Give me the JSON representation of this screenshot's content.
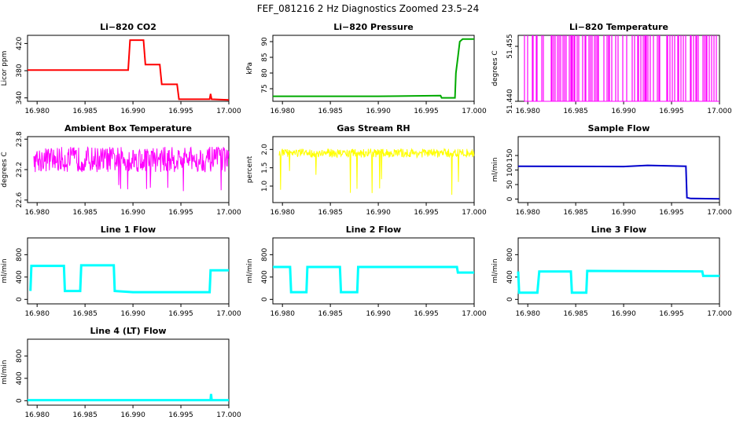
{
  "figure_title": "FEF_081216  2 Hz Diagnostics Zoomed 23.5–24",
  "x_ticks": [
    "16.980",
    "16.985",
    "16.990",
    "16.995",
    "17.000"
  ],
  "chart_data": [
    {
      "type": "line",
      "title": "Li−820 CO2",
      "ylabel": "Licor ppm",
      "color": "#ff0000",
      "xlim": [
        16.979,
        17.0
      ],
      "ylim": [
        335,
        432
      ],
      "yticks": [
        340,
        380,
        420
      ],
      "ytick_labels": [
        "340",
        "380",
        "420"
      ],
      "x": [
        16.979,
        16.9895,
        16.9897,
        16.9911,
        16.9913,
        16.9928,
        16.993,
        16.9946,
        16.9948,
        16.998,
        16.9981,
        16.9982,
        17.0
      ],
      "y": [
        381,
        381,
        425,
        425,
        389,
        389,
        360,
        360,
        338,
        338,
        346,
        338,
        337
      ]
    },
    {
      "type": "line",
      "title": "Li−820 Pressure",
      "ylabel": "kPa",
      "color": "#00aa00",
      "xlim": [
        16.979,
        17.0
      ],
      "ylim": [
        71,
        92
      ],
      "yticks": [
        75,
        80,
        85,
        90
      ],
      "ytick_labels": [
        "75",
        "80",
        "85",
        "90"
      ],
      "x": [
        16.979,
        16.99,
        16.9965,
        16.9966,
        16.998,
        16.9981,
        16.9983,
        16.9985,
        16.9988,
        17.0
      ],
      "y": [
        72.6,
        72.6,
        72.8,
        72.1,
        72.1,
        80,
        85,
        90,
        90.8,
        90.8
      ]
    },
    {
      "type": "line",
      "title": "Li−820 Temperature",
      "ylabel": "degrees C",
      "color": "#ff00ff",
      "xlim": [
        16.979,
        17.0
      ],
      "ylim": [
        51.44,
        51.458
      ],
      "yticks": [
        51.44,
        51.455
      ],
      "ytick_labels": [
        "51.440",
        "51.455"
      ],
      "x": [
        16.979,
        17.0
      ],
      "y": [
        51.44,
        51.458
      ]
    },
    {
      "type": "line",
      "title": "Ambient Box Temperature",
      "ylabel": "degrees C",
      "color": "#ff00ff",
      "xlim": [
        16.979,
        17.0
      ],
      "ylim": [
        22.55,
        23.85
      ],
      "yticks": [
        22.6,
        23.2,
        23.8
      ],
      "ytick_labels": [
        "22.6",
        "23.2",
        "23.8"
      ],
      "x": [
        16.979,
        17.0
      ],
      "y": [
        23.4,
        23.4
      ]
    },
    {
      "type": "line",
      "title": "Gas Stream RH",
      "ylabel": "percent",
      "color": "#ffff00",
      "xlim": [
        16.979,
        17.0
      ],
      "ylim": [
        0.55,
        2.35
      ],
      "yticks": [
        1.0,
        1.5,
        2.0
      ],
      "ytick_labels": [
        "1.0",
        "1.5",
        "2.0"
      ],
      "x": [
        16.979,
        17.0
      ],
      "y": [
        1.9,
        1.9
      ]
    },
    {
      "type": "line",
      "title": "Sample Flow",
      "ylabel": "ml/min",
      "color": "#0000cc",
      "xlim": [
        16.979,
        17.0
      ],
      "ylim": [
        -12,
        215
      ],
      "yticks": [
        0,
        50,
        100,
        150
      ],
      "ytick_labels": [
        "0",
        "50",
        "100",
        "150"
      ],
      "x": [
        16.979,
        16.99,
        16.9925,
        16.9965,
        16.9966,
        16.997,
        17.0
      ],
      "y": [
        113,
        112,
        116,
        113,
        5,
        2,
        1
      ]
    },
    {
      "type": "line",
      "title": "Line 1 Flow",
      "ylabel": "ml/min",
      "color": "#00ffff",
      "xlim": [
        16.979,
        17.0
      ],
      "ylim": [
        -80,
        1100
      ],
      "yticks": [
        0,
        400,
        800
      ],
      "ytick_labels": [
        "0",
        "400",
        "800"
      ],
      "x": [
        16.9793,
        16.9794,
        16.9828,
        16.9829,
        16.9845,
        16.9846,
        16.988,
        16.9881,
        16.99,
        16.998,
        16.9981,
        17.0
      ],
      "y": [
        150,
        600,
        600,
        150,
        150,
        610,
        610,
        150,
        130,
        130,
        520,
        520
      ]
    },
    {
      "type": "line",
      "title": "Line 2 Flow",
      "ylabel": "ml/min",
      "color": "#00ffff",
      "xlim": [
        16.979,
        17.0
      ],
      "ylim": [
        -80,
        1100
      ],
      "yticks": [
        0,
        400,
        800
      ],
      "ytick_labels": [
        "0",
        "400",
        "800"
      ],
      "x": [
        16.979,
        16.9808,
        16.9809,
        16.9825,
        16.9826,
        16.986,
        16.9861,
        16.9878,
        16.9879,
        16.9982,
        16.9983,
        17.0
      ],
      "y": [
        580,
        580,
        130,
        130,
        580,
        580,
        130,
        130,
        580,
        580,
        480,
        480
      ]
    },
    {
      "type": "line",
      "title": "Line 3 Flow",
      "ylabel": "ml/min",
      "color": "#00ffff",
      "xlim": [
        16.979,
        17.0
      ],
      "ylim": [
        -80,
        1100
      ],
      "yticks": [
        0,
        400,
        800
      ],
      "ytick_labels": [
        "0",
        "400",
        "800"
      ],
      "x": [
        16.979,
        16.9791,
        16.9792,
        16.981,
        16.9812,
        16.9845,
        16.9846,
        16.9861,
        16.9862,
        16.9982,
        16.9983,
        17.0
      ],
      "y": [
        500,
        120,
        120,
        120,
        500,
        500,
        120,
        120,
        510,
        500,
        420,
        420
      ]
    },
    {
      "type": "line",
      "title": "Line 4 (LT) Flow",
      "ylabel": "ml/min",
      "color": "#00ffff",
      "xlim": [
        16.979,
        17.0
      ],
      "ylim": [
        -80,
        1100
      ],
      "yticks": [
        0,
        400,
        800
      ],
      "ytick_labels": [
        "0",
        "400",
        "800"
      ],
      "x": [
        16.979,
        16.9981,
        16.99815,
        16.9982,
        16.99825,
        17.0
      ],
      "y": [
        10,
        10,
        120,
        20,
        10,
        10
      ]
    }
  ]
}
